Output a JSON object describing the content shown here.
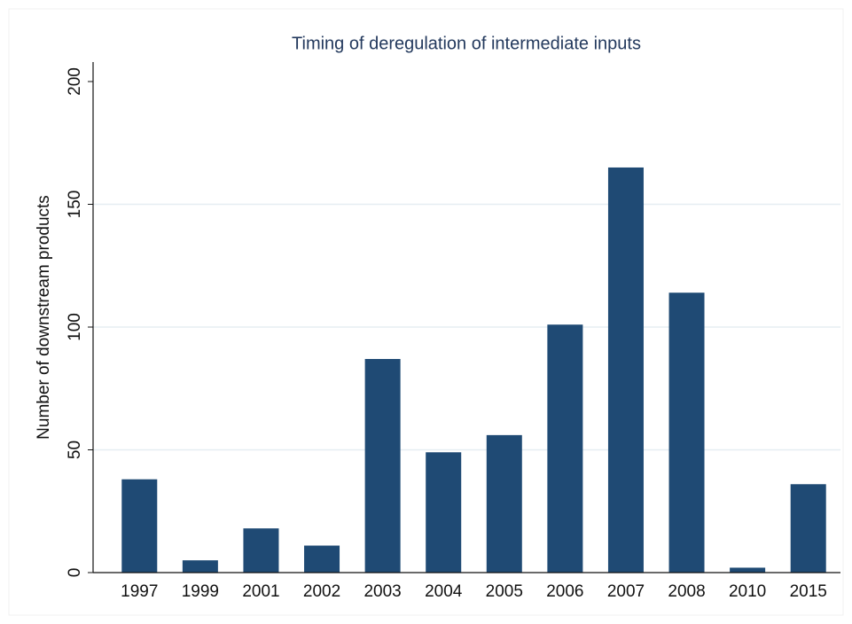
{
  "chart_data": {
    "type": "bar",
    "title": "Timing of deregulation of intermediate inputs",
    "y_label": "Number of downstream products",
    "categories": [
      "1997",
      "1999",
      "2001",
      "2002",
      "2003",
      "2004",
      "2005",
      "2006",
      "2007",
      "2008",
      "2010",
      "2015"
    ],
    "values": [
      38,
      5,
      18,
      11,
      87,
      49,
      56,
      101,
      165,
      114,
      2,
      36
    ],
    "color": "#1f4a74",
    "ylim": [
      0,
      200
    ],
    "yticks": [
      0,
      50,
      100,
      150,
      200
    ],
    "grid": true
  }
}
